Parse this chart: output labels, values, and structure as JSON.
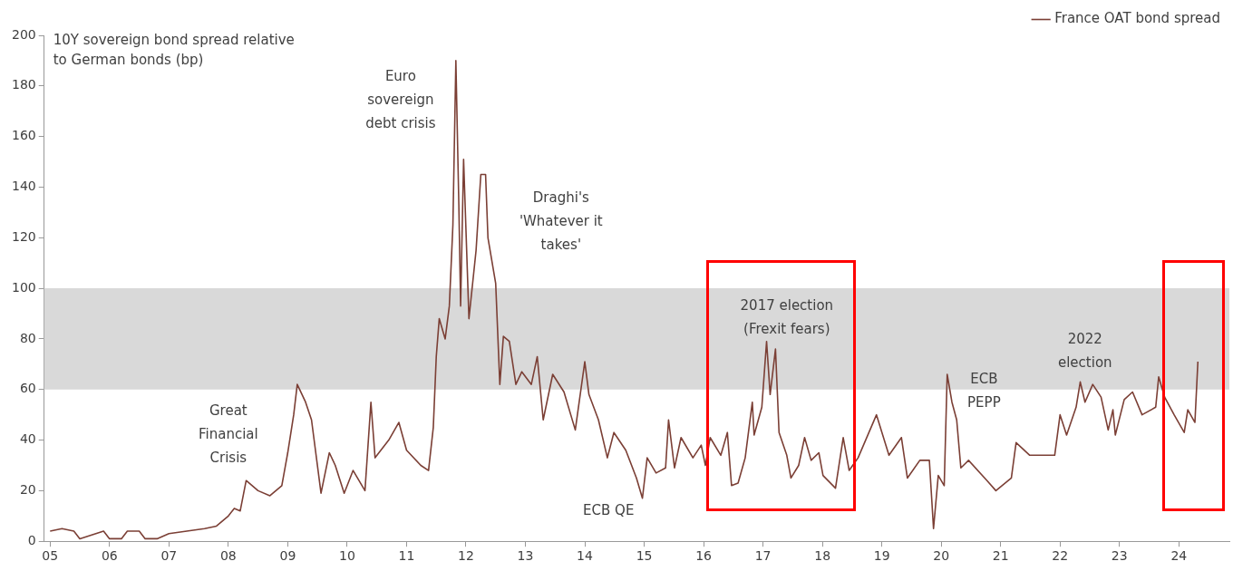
{
  "chart_data": {
    "type": "line",
    "ylabel": "10Y sovereign bond spread relative to German bonds (bp)",
    "x": [
      2005.0,
      2005.2,
      2005.4,
      2005.5,
      2005.9,
      2006.0,
      2006.2,
      2006.3,
      2006.5,
      2006.6,
      2006.8,
      2007.0,
      2007.3,
      2007.6,
      2007.8,
      2008.0,
      2008.1,
      2008.2,
      2008.3,
      2008.5,
      2008.7,
      2008.9,
      2009.0,
      2009.1,
      2009.16,
      2009.3,
      2009.4,
      2009.56,
      2009.7,
      2009.8,
      2009.95,
      2010.1,
      2010.3,
      2010.4,
      2010.47,
      2010.7,
      2010.87,
      2011.0,
      2011.24,
      2011.37,
      2011.45,
      2011.5,
      2011.55,
      2011.65,
      2011.72,
      2011.78,
      2011.83,
      2011.88,
      2011.91,
      2011.96,
      2012.05,
      2012.17,
      2012.25,
      2012.33,
      2012.37,
      2012.5,
      2012.57,
      2012.63,
      2012.73,
      2012.84,
      2012.94,
      2013.1,
      2013.2,
      2013.3,
      2013.46,
      2013.65,
      2013.84,
      2014.0,
      2014.07,
      2014.23,
      2014.38,
      2014.49,
      2014.69,
      2014.87,
      2014.97,
      2015.05,
      2015.2,
      2015.36,
      2015.41,
      2015.51,
      2015.62,
      2015.82,
      2015.96,
      2016.03,
      2016.11,
      2016.29,
      2016.4,
      2016.47,
      2016.58,
      2016.7,
      2016.82,
      2016.85,
      2016.98,
      2017.06,
      2017.12,
      2017.21,
      2017.27,
      2017.4,
      2017.47,
      2017.6,
      2017.7,
      2017.81,
      2017.94,
      2018.01,
      2018.22,
      2018.35,
      2018.45,
      2018.6,
      2018.91,
      2019.12,
      2019.33,
      2019.43,
      2019.64,
      2019.8,
      2019.87,
      2019.95,
      2020.05,
      2020.1,
      2020.18,
      2020.26,
      2020.33,
      2020.46,
      2020.77,
      2020.92,
      2021.18,
      2021.26,
      2021.49,
      2021.91,
      2022.0,
      2022.11,
      2022.27,
      2022.34,
      2022.42,
      2022.55,
      2022.69,
      2022.81,
      2022.89,
      2022.93,
      2023.08,
      2023.22,
      2023.38,
      2023.61,
      2023.66,
      2023.76,
      2023.92,
      2024.09,
      2024.15,
      2024.27,
      2024.32
    ],
    "series": [
      {
        "name": "France OAT bond spread",
        "color": "#7b3f35",
        "values": [
          4,
          5,
          4,
          1,
          4,
          1,
          1,
          4,
          4,
          1,
          1,
          3,
          4,
          5,
          6,
          10,
          13,
          12,
          24,
          20,
          18,
          22,
          35,
          50,
          62,
          55,
          48,
          19,
          35,
          30,
          19,
          28,
          20,
          55,
          33,
          40,
          47,
          36,
          30,
          28,
          45,
          73,
          88,
          80,
          93,
          125,
          190,
          133,
          93,
          151,
          88,
          115,
          145,
          145,
          120,
          102,
          62,
          81,
          79,
          62,
          67,
          62,
          73,
          48,
          66,
          59,
          44,
          71,
          58,
          48,
          33,
          43,
          36,
          25,
          17,
          33,
          27,
          29,
          48,
          29,
          41,
          33,
          38,
          30,
          41,
          34,
          43,
          22,
          23,
          33,
          55,
          42,
          53,
          79,
          58,
          76,
          43,
          34,
          25,
          30,
          41,
          32,
          35,
          26,
          21,
          41,
          28,
          33,
          50,
          34,
          41,
          25,
          32,
          32,
          5,
          26,
          22,
          66,
          55,
          48,
          29,
          32,
          24,
          20,
          25,
          39,
          34,
          34,
          50,
          42,
          53,
          63,
          55,
          62,
          57,
          44,
          52,
          42,
          56,
          59,
          50,
          53,
          65,
          57,
          50,
          43,
          52,
          47,
          71
        ]
      }
    ],
    "xlim": [
      2004.9,
      2024.85
    ],
    "xticks": [
      {
        "value": 2005,
        "label": "05"
      },
      {
        "value": 2006,
        "label": "06"
      },
      {
        "value": 2007,
        "label": "07"
      },
      {
        "value": 2008,
        "label": "08"
      },
      {
        "value": 2009,
        "label": "09"
      },
      {
        "value": 2010,
        "label": "10"
      },
      {
        "value": 2011,
        "label": "11"
      },
      {
        "value": 2012,
        "label": "12"
      },
      {
        "value": 2013,
        "label": "13"
      },
      {
        "value": 2014,
        "label": "14"
      },
      {
        "value": 2015,
        "label": "15"
      },
      {
        "value": 2016,
        "label": "16"
      },
      {
        "value": 2017,
        "label": "17"
      },
      {
        "value": 2018,
        "label": "18"
      },
      {
        "value": 2019,
        "label": "19"
      },
      {
        "value": 2020,
        "label": "20"
      },
      {
        "value": 2021,
        "label": "21"
      },
      {
        "value": 2022,
        "label": "22"
      },
      {
        "value": 2023,
        "label": "23"
      },
      {
        "value": 2024,
        "label": "24"
      }
    ],
    "ylim": [
      0,
      200
    ],
    "yticks": [
      0,
      20,
      40,
      60,
      80,
      100,
      120,
      140,
      160,
      180,
      200
    ],
    "bands": [
      {
        "axis": "y",
        "from": 60,
        "to": 100,
        "color": "#d9d9d9"
      }
    ],
    "annotations": [
      "Great Financial Crisis",
      "Euro sovereign debt crisis",
      "Draghi's 'Whatever it takes'",
      "ECB QE",
      "2017 election (Frexit fears)",
      "ECB PEPP",
      "2022 election"
    ],
    "grid": false,
    "legend": "top right",
    "marker": "none",
    "line_style": "solid"
  }
}
